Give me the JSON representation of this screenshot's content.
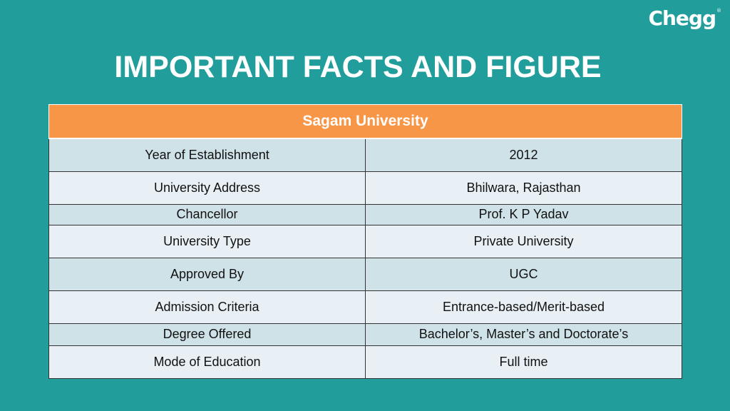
{
  "brand": {
    "logo_text": "Chegg",
    "logo_mark": "®"
  },
  "slide": {
    "title": "IMPORTANT FACTS AND FIGURE"
  },
  "table": {
    "header": "Sagam  University",
    "rows": [
      {
        "label": "Year of Establishment",
        "value": "2012"
      },
      {
        "label": "University Address",
        "value": "Bhilwara, Rajasthan"
      },
      {
        "label": "Chancellor",
        "value": "Prof. K P Yadav"
      },
      {
        "label": "University Type",
        "value": "Private University"
      },
      {
        "label": "Approved By",
        "value": "UGC"
      },
      {
        "label": "Admission Criteria",
        "value": "Entrance-based/Merit-based"
      },
      {
        "label": "Degree Offered",
        "value": "Bachelor’s, Master’s and Doctorate’s"
      },
      {
        "label": "Mode of Education",
        "value": "Full time"
      }
    ]
  },
  "colors": {
    "background": "#219e9c",
    "header": "#f79646",
    "row_dark": "#cfe2e8",
    "row_light": "#e8f0f5"
  }
}
